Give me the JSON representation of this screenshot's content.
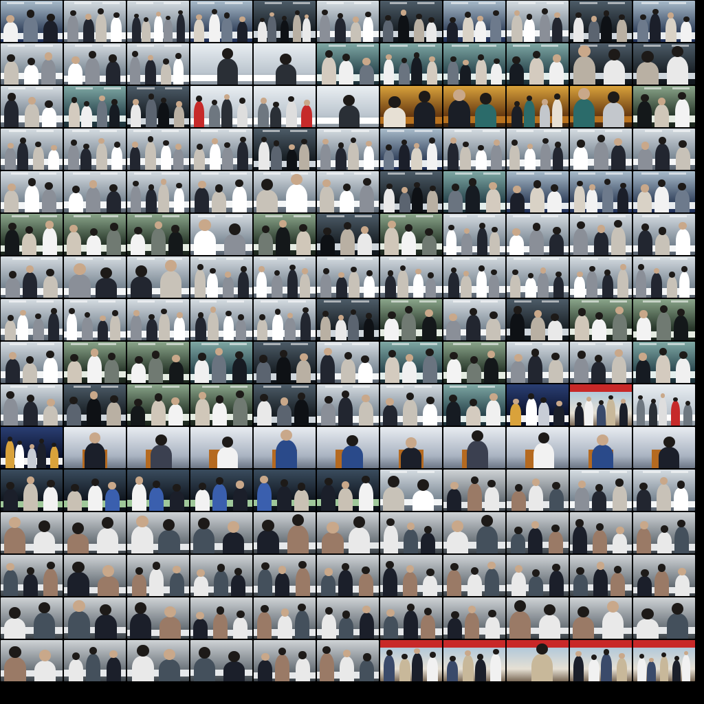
{
  "sheet": {
    "columns": 11,
    "rows": 16,
    "background": "#000000"
  },
  "palettes": {
    "lab-blue": {
      "bg": [
        "#a9bccb",
        "#3a4a63"
      ],
      "floor": "#20305a",
      "counter": "#e8ecef",
      "figs": [
        "#f2f2f2",
        "#6d7a8c",
        "#1b1f2a",
        "#d9d2c6"
      ]
    },
    "lab-white": {
      "bg": [
        "#d6dde2",
        "#7d8a96"
      ],
      "floor": "#5a6470",
      "counter": "#f4f6f7",
      "figs": [
        "#ffffff",
        "#8a8f98",
        "#222630",
        "#c8c2b8"
      ]
    },
    "lab-dark": {
      "bg": [
        "#4d5c68",
        "#1a2127"
      ],
      "floor": "#10161c",
      "counter": "#cfd6dc",
      "figs": [
        "#e9e9e9",
        "#5b6470",
        "#0e1115",
        "#b9b0a3"
      ]
    },
    "lab-teal": {
      "bg": [
        "#7fa8a4",
        "#2d4a52"
      ],
      "floor": "#1d3138",
      "counter": "#e3eeec",
      "figs": [
        "#f0f0f0",
        "#6a7480",
        "#161b22",
        "#d4cbbf"
      ]
    },
    "lab-green": {
      "bg": [
        "#8aa58a",
        "#2b3a2d"
      ],
      "floor": "#1c261d",
      "counter": "#e5ece2",
      "figs": [
        "#f3f3f3",
        "#707a72",
        "#14181a",
        "#d0c7b9"
      ]
    },
    "building": {
      "bg": [
        "#e9eef2",
        "#bcc6cf"
      ],
      "floor": "#8e98a2",
      "counter": "#ffffff",
      "figs": [
        "#c62a2a",
        "#6e7780",
        "#2a2f36",
        "#dedede"
      ]
    },
    "reception": {
      "bg": [
        "#d9a23b",
        "#6a3c12"
      ],
      "floor": "#3a2410",
      "counter": "#b8721f",
      "figs": [
        "#1a1e26",
        "#2b6b6a",
        "#c3c7cc",
        "#e7e0d4"
      ]
    },
    "auditorium": {
      "bg": [
        "#2a3f73",
        "#0d1530"
      ],
      "floor": "#081026",
      "counter": "#f2f2f2",
      "figs": [
        "#ffffff",
        "#c8cdd6",
        "#1b1f2a",
        "#d9a23b"
      ]
    },
    "podium": {
      "bg": [
        "#e8ecf1",
        "#aab4c2"
      ],
      "floor": "#6c7686",
      "counter": "#b56a20",
      "figs": [
        "#1b1f2a",
        "#3b4050",
        "#f2f2f2",
        "#2a4a8a"
      ]
    },
    "model": {
      "bg": [
        "#3a4c5e",
        "#121922"
      ],
      "floor": "#0c1218",
      "counter": "#9fc89a",
      "figs": [
        "#f2f2f2",
        "#3a5fae",
        "#1b1f2a",
        "#c9c1b4"
      ]
    },
    "office": {
      "bg": [
        "#cfd3d6",
        "#6e767d"
      ],
      "floor": "#3e454b",
      "counter": "#e6e8ea",
      "figs": [
        "#1b1f2a",
        "#9a7a66",
        "#e9e9e9",
        "#44505c"
      ]
    },
    "outdoor": {
      "bg": [
        "#9fc0dc",
        "#e6e0d4"
      ],
      "floor": "#7b6a58",
      "counter": "#c82828",
      "figs": [
        "#1b1f2a",
        "#f1f1f1",
        "#3a4a6a",
        "#c8b89a"
      ]
    }
  },
  "row_scenes": [
    [
      "lab-blue",
      "lab-white",
      "lab-white",
      "lab-blue",
      "lab-dark",
      "lab-white",
      "lab-dark",
      "lab-blue",
      "lab-white",
      "lab-dark",
      "lab-blue"
    ],
    [
      "lab-white",
      "lab-white",
      "lab-white",
      "building",
      "building",
      "lab-teal",
      "lab-teal",
      "lab-teal",
      "lab-teal",
      "lab-dark",
      "lab-dark"
    ],
    [
      "lab-white",
      "lab-teal",
      "lab-dark",
      "building",
      "building",
      "building",
      "reception",
      "reception",
      "reception",
      "reception",
      "lab-green"
    ],
    [
      "lab-white",
      "lab-white",
      "lab-white",
      "lab-white",
      "lab-dark",
      "lab-white",
      "lab-blue",
      "lab-white",
      "lab-white",
      "lab-white",
      "lab-white"
    ],
    [
      "lab-white",
      "lab-white",
      "lab-white",
      "lab-white",
      "lab-white",
      "lab-white",
      "lab-dark",
      "lab-teal",
      "lab-blue",
      "lab-blue",
      "lab-blue"
    ],
    [
      "lab-green",
      "lab-green",
      "lab-green",
      "lab-white",
      "lab-green",
      "lab-dark",
      "lab-green",
      "lab-white",
      "lab-white",
      "lab-white",
      "lab-white"
    ],
    [
      "lab-white",
      "lab-white",
      "lab-white",
      "lab-white",
      "lab-white",
      "lab-white",
      "lab-white",
      "lab-white",
      "lab-white",
      "lab-white",
      "lab-white"
    ],
    [
      "lab-white",
      "lab-white",
      "lab-white",
      "lab-white",
      "lab-white",
      "lab-dark",
      "lab-green",
      "lab-white",
      "lab-dark",
      "lab-green",
      "lab-green"
    ],
    [
      "lab-white",
      "lab-green",
      "lab-green",
      "lab-teal",
      "lab-dark",
      "lab-white",
      "lab-teal",
      "lab-green",
      "lab-white",
      "lab-white",
      "lab-teal"
    ],
    [
      "lab-white",
      "lab-dark",
      "lab-green",
      "lab-green",
      "lab-dark",
      "lab-white",
      "lab-white",
      "lab-teal",
      "auditorium",
      "outdoor",
      "building"
    ],
    [
      "auditorium",
      "podium",
      "podium",
      "podium",
      "podium",
      "podium",
      "podium",
      "podium",
      "podium",
      "podium",
      "podium"
    ],
    [
      "model",
      "model",
      "model",
      "model",
      "model",
      "model",
      "lab-white",
      "office",
      "office",
      "lab-white",
      "lab-white"
    ],
    [
      "office",
      "office",
      "office",
      "office",
      "office",
      "office",
      "office",
      "office",
      "office",
      "office",
      "office"
    ],
    [
      "office",
      "office",
      "office",
      "office",
      "office",
      "office",
      "office",
      "office",
      "office",
      "office",
      "office"
    ],
    [
      "office",
      "office",
      "office",
      "office",
      "office",
      "office",
      "office",
      "office",
      "office",
      "office",
      "office"
    ],
    [
      "office",
      "office",
      "office",
      "office",
      "office",
      "office",
      "outdoor",
      "outdoor",
      "outdoor",
      "outdoor",
      "outdoor"
    ]
  ],
  "figure_counts": [
    [
      3,
      4,
      5,
      4,
      5,
      4,
      4,
      4,
      4,
      4,
      4
    ],
    [
      3,
      3,
      4,
      1,
      1,
      3,
      4,
      4,
      3,
      2,
      2
    ],
    [
      3,
      4,
      4,
      4,
      4,
      1,
      2,
      2,
      4,
      2,
      3
    ],
    [
      4,
      4,
      4,
      4,
      4,
      4,
      4,
      4,
      4,
      3,
      3
    ],
    [
      3,
      3,
      4,
      3,
      2,
      3,
      4,
      3,
      3,
      4,
      3
    ],
    [
      3,
      3,
      3,
      2,
      3,
      3,
      3,
      4,
      3,
      3,
      3
    ],
    [
      3,
      2,
      2,
      4,
      4,
      4,
      4,
      4,
      4,
      4,
      4
    ],
    [
      4,
      4,
      4,
      4,
      4,
      4,
      3,
      3,
      3,
      3,
      3
    ],
    [
      3,
      3,
      3,
      3,
      3,
      3,
      3,
      3,
      3,
      3,
      3
    ],
    [
      3,
      3,
      3,
      3,
      3,
      3,
      3,
      3,
      4,
      5,
      5
    ],
    [
      5,
      1,
      1,
      1,
      1,
      1,
      1,
      1,
      1,
      1,
      1
    ],
    [
      3,
      3,
      3,
      3,
      3,
      3,
      2,
      3,
      3,
      3,
      3
    ],
    [
      2,
      2,
      2,
      2,
      2,
      2,
      3,
      2,
      3,
      3,
      3
    ],
    [
      3,
      2,
      3,
      3,
      3,
      3,
      3,
      3,
      3,
      3,
      3
    ],
    [
      2,
      2,
      2,
      3,
      3,
      3,
      3,
      3,
      2,
      2,
      2
    ],
    [
      2,
      3,
      2,
      2,
      3,
      3,
      4,
      4,
      1,
      4,
      5
    ]
  ]
}
